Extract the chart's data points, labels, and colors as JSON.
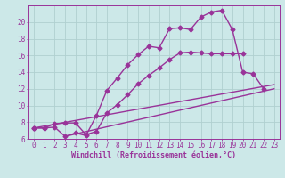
{
  "xlabel": "Windchill (Refroidissement éolien,°C)",
  "bg_color": "#cce8e8",
  "line_color": "#993399",
  "grid_color": "#b0d0d0",
  "axis_color": "#993399",
  "xlim": [
    -0.5,
    23.5
  ],
  "ylim": [
    6,
    22
  ],
  "xticks": [
    0,
    1,
    2,
    3,
    4,
    5,
    6,
    7,
    8,
    9,
    10,
    11,
    12,
    13,
    14,
    15,
    16,
    17,
    18,
    19,
    20,
    21,
    22,
    23
  ],
  "yticks": [
    6,
    8,
    10,
    12,
    14,
    16,
    18,
    20
  ],
  "line1_x": [
    0,
    1,
    2,
    3,
    4,
    5,
    6,
    7,
    8,
    9,
    10,
    11,
    12,
    13,
    14,
    15,
    16,
    17,
    18,
    19,
    20,
    21,
    22
  ],
  "line1_y": [
    7.3,
    7.3,
    7.4,
    6.3,
    6.7,
    6.4,
    8.8,
    11.8,
    13.3,
    14.9,
    16.1,
    17.1,
    16.9,
    19.2,
    19.3,
    19.1,
    20.6,
    21.2,
    21.4,
    19.1,
    14.0,
    13.8,
    12.0
  ],
  "line2_x": [
    0,
    1,
    2,
    3,
    4,
    5,
    6,
    7,
    8,
    9,
    10,
    11,
    12,
    13,
    14,
    15,
    16,
    17,
    18,
    19,
    20
  ],
  "line2_y": [
    7.3,
    7.3,
    7.8,
    7.9,
    7.9,
    6.5,
    6.9,
    9.1,
    10.1,
    11.3,
    12.6,
    13.6,
    14.5,
    15.5,
    16.3,
    16.4,
    16.3,
    16.2,
    16.2,
    16.2,
    16.2
  ],
  "line3_x": [
    0,
    23
  ],
  "line3_y": [
    7.3,
    12.5
  ],
  "line4_x": [
    3,
    23
  ],
  "line4_y": [
    6.3,
    12.0
  ],
  "marker": "D",
  "markersize": 2.5,
  "linewidth": 1.0
}
